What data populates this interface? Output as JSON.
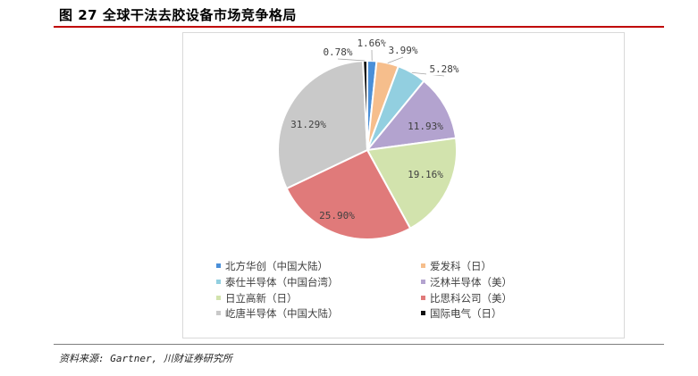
{
  "figure": {
    "title": "图 27 全球干法去胶设备市场竞争格局",
    "source": "资料来源: Gartner, 川财证券研究所"
  },
  "chart_data": {
    "type": "pie",
    "title": "",
    "series": [
      {
        "name": "北方华创（中国大陆）",
        "value": 1.66,
        "label": "1.66%",
        "color": "#4a8fd8"
      },
      {
        "name": "爱发科（日）",
        "value": 3.99,
        "label": "3.99%",
        "color": "#f6be8c"
      },
      {
        "name": "泰仕半导体（中国台湾）",
        "value": 5.28,
        "label": "5.28%",
        "color": "#92cfe0"
      },
      {
        "name": "泛林半导体（美）",
        "value": 11.93,
        "label": "11.93%",
        "color": "#b3a3cf"
      },
      {
        "name": "日立高新（日）",
        "value": 19.16,
        "label": "19.16%",
        "color": "#d2e3ad"
      },
      {
        "name": "比思科公司（美）",
        "value": 25.9,
        "label": "25.90%",
        "color": "#e07a7a"
      },
      {
        "name": "屹唐半导体（中国大陆）",
        "value": 31.29,
        "label": "31.29%",
        "color": "#c9c9c9"
      },
      {
        "name": "国际电气（日）",
        "value": 0.78,
        "label": "0.78%",
        "color": "#111111"
      }
    ],
    "legend_position": "bottom"
  }
}
